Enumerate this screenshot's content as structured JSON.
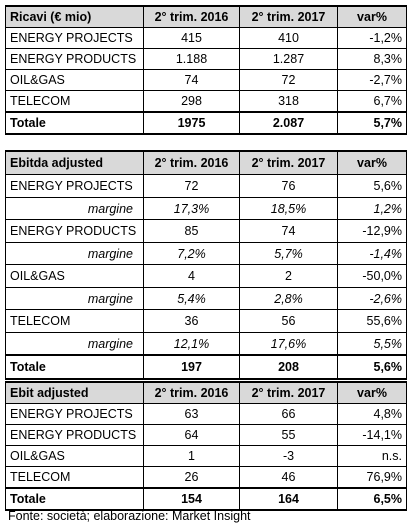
{
  "ricavi": {
    "header": [
      "Ricavi  (€ mio)",
      "2° trim. 2016",
      "2° trim. 2017",
      "var%"
    ],
    "rows": [
      [
        "ENERGY PROJECTS",
        "415",
        "410",
        "-1,2%"
      ],
      [
        "ENERGY PRODUCTS",
        "1.188",
        "1.287",
        "8,3%"
      ],
      [
        "OIL&GAS",
        "74",
        "72",
        "-2,7%"
      ],
      [
        "TELECOM",
        "298",
        "318",
        "6,7%"
      ]
    ],
    "total": [
      "Totale",
      "1975",
      "2.087",
      "5,7%"
    ]
  },
  "ebitda": {
    "header": [
      "Ebitda adjusted",
      "2° trim. 2016",
      "2° trim. 2017",
      "var%"
    ],
    "rows": [
      [
        "ENERGY PROJECTS",
        "72",
        "76",
        "5,6%"
      ],
      [
        "margine",
        "17,3%",
        "18,5%",
        "1,2%"
      ],
      [
        "ENERGY PRODUCTS",
        "85",
        "74",
        "-12,9%"
      ],
      [
        "margine",
        "7,2%",
        "5,7%",
        "-1,4%"
      ],
      [
        "OIL&GAS",
        "4",
        "2",
        "-50,0%"
      ],
      [
        "margine",
        "5,4%",
        "2,8%",
        "-2,6%"
      ],
      [
        "TELECOM",
        "36",
        "56",
        "55,6%"
      ],
      [
        "margine",
        "12,1%",
        "17,6%",
        "5,5%"
      ]
    ],
    "total": [
      "Totale",
      "197",
      "208",
      "5,6%"
    ]
  },
  "ebit": {
    "header": [
      "Ebit adjusted",
      "2° trim. 2016",
      "2° trim. 2017",
      "var%"
    ],
    "rows": [
      [
        "ENERGY PROJECTS",
        "63",
        "66",
        "4,8%"
      ],
      [
        "ENERGY PRODUCTS",
        "64",
        "55",
        "-14,1%"
      ],
      [
        "OIL&GAS",
        "1",
        "-3",
        "n.s."
      ],
      [
        "TELECOM",
        "26",
        "46",
        "76,9%"
      ]
    ],
    "total": [
      "Totale",
      "154",
      "164",
      "6,5%"
    ]
  },
  "source": "Fonte: società; elaborazione: Market Insight"
}
